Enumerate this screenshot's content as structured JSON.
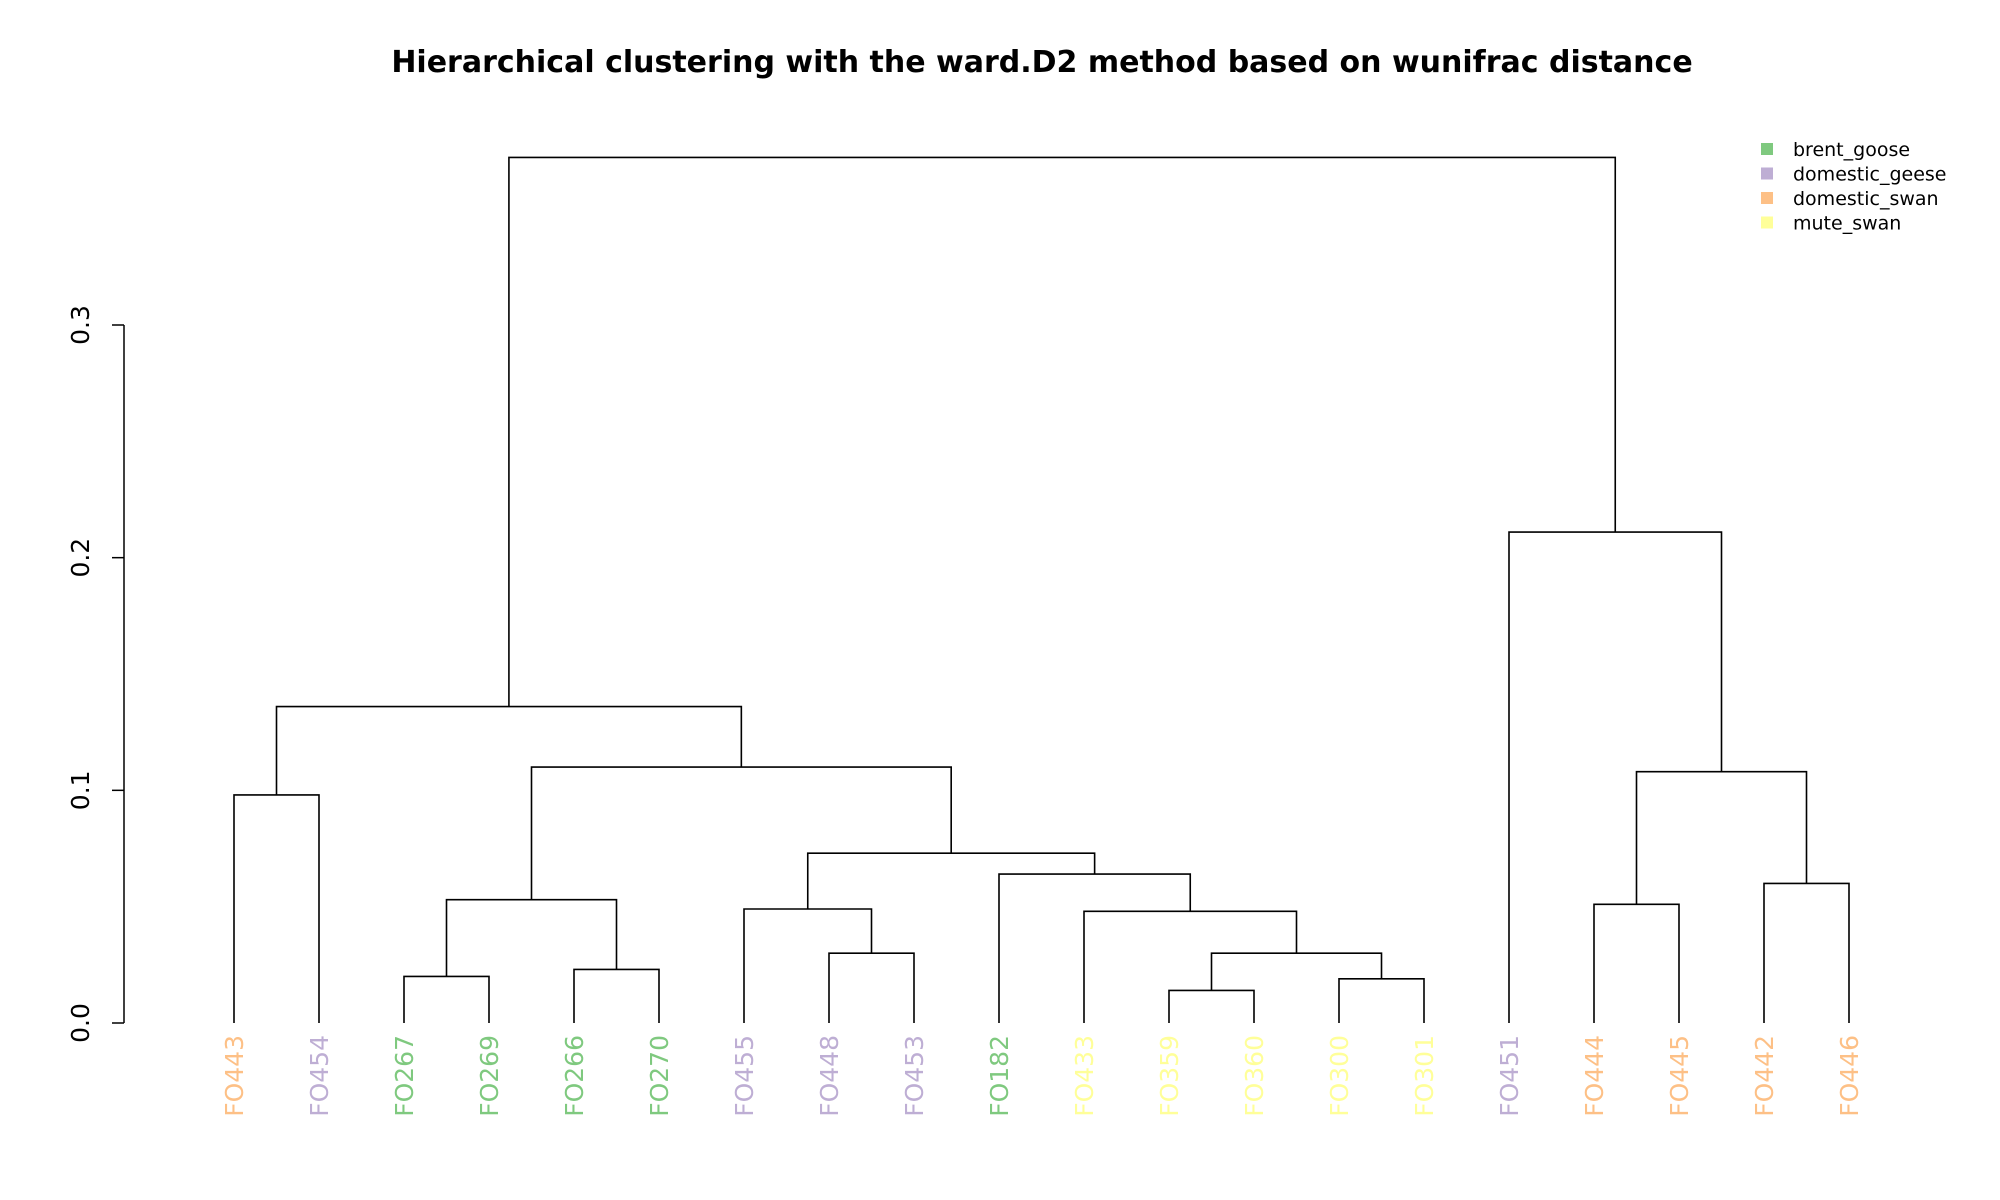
{
  "chart_data": {
    "type": "dendrogram",
    "title": "Hierarchical clustering with the ward.D2 method based on wunifrac distance",
    "ylim": [
      0,
      0.37
    ],
    "yticks": [
      0.0,
      0.1,
      0.2,
      0.3
    ],
    "ytick_labels": [
      "0.0",
      "0.1",
      "0.2",
      "0.3"
    ],
    "leaves": [
      {
        "label": "FO443",
        "group": "domestic_swan"
      },
      {
        "label": "FO454",
        "group": "domestic_geese"
      },
      {
        "label": "FO267",
        "group": "brent_goose"
      },
      {
        "label": "FO269",
        "group": "brent_goose"
      },
      {
        "label": "FO266",
        "group": "brent_goose"
      },
      {
        "label": "FO270",
        "group": "brent_goose"
      },
      {
        "label": "FO455",
        "group": "domestic_geese"
      },
      {
        "label": "FO448",
        "group": "domestic_geese"
      },
      {
        "label": "FO453",
        "group": "domestic_geese"
      },
      {
        "label": "FO182",
        "group": "brent_goose"
      },
      {
        "label": "FO433",
        "group": "mute_swan"
      },
      {
        "label": "FO359",
        "group": "mute_swan"
      },
      {
        "label": "FO360",
        "group": "mute_swan"
      },
      {
        "label": "FO300",
        "group": "mute_swan"
      },
      {
        "label": "FO301",
        "group": "mute_swan"
      },
      {
        "label": "FO451",
        "group": "domestic_geese"
      },
      {
        "label": "FO444",
        "group": "domestic_swan"
      },
      {
        "label": "FO445",
        "group": "domestic_swan"
      },
      {
        "label": "FO442",
        "group": "domestic_swan"
      },
      {
        "label": "FO446",
        "group": "domestic_swan"
      }
    ],
    "merges": [
      {
        "left": "L0",
        "right": "L1",
        "height": 0.098
      },
      {
        "left": "L2",
        "right": "L3",
        "height": 0.02
      },
      {
        "left": "L4",
        "right": "L5",
        "height": 0.023
      },
      {
        "left": "M1",
        "right": "M2",
        "height": 0.053
      },
      {
        "left": "L7",
        "right": "L8",
        "height": 0.03
      },
      {
        "left": "L6",
        "right": "M4",
        "height": 0.049
      },
      {
        "left": "L11",
        "right": "L12",
        "height": 0.014
      },
      {
        "left": "L13",
        "right": "L14",
        "height": 0.019
      },
      {
        "left": "M6",
        "right": "M7",
        "height": 0.03
      },
      {
        "left": "L10",
        "right": "M8",
        "height": 0.048
      },
      {
        "left": "L9",
        "right": "M9",
        "height": 0.064
      },
      {
        "left": "M5",
        "right": "M10",
        "height": 0.073
      },
      {
        "left": "M3",
        "right": "M11",
        "height": 0.11
      },
      {
        "left": "M0",
        "right": "M12",
        "height": 0.136
      },
      {
        "left": "L16",
        "right": "L17",
        "height": 0.051
      },
      {
        "left": "L18",
        "right": "L19",
        "height": 0.06
      },
      {
        "left": "M14",
        "right": "M15",
        "height": 0.108
      },
      {
        "left": "L15",
        "right": "M16",
        "height": 0.211
      },
      {
        "left": "M13",
        "right": "M17",
        "height": 0.372
      }
    ],
    "legend": {
      "position": "top-right",
      "entries": [
        {
          "label": "brent_goose",
          "color": "#7fc97f"
        },
        {
          "label": "domestic_geese",
          "color": "#beaed4"
        },
        {
          "label": "domestic_swan",
          "color": "#fdc086"
        },
        {
          "label": "mute_swan",
          "color": "#ffff99"
        }
      ]
    }
  }
}
